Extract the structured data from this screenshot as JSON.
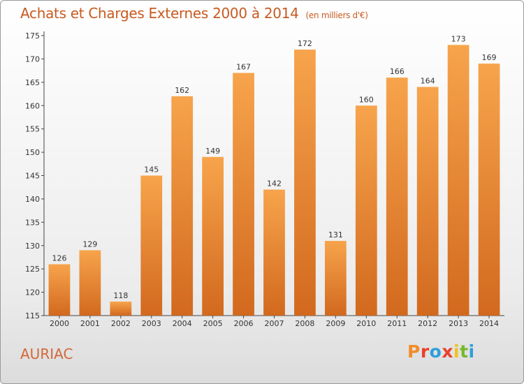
{
  "header": {
    "title": "Achats et Charges Externes 2000 à 2014",
    "subtitle": "(en milliers d'€)"
  },
  "footer": {
    "commune": "AURIAC",
    "logo_text": "Proxiti"
  },
  "colors": {
    "title": "#c85a20",
    "commune": "#d2683a",
    "bar_top": "#f7a44c",
    "bar_bottom": "#d2691e",
    "logo_letters": [
      "#f28c28",
      "#e8412c",
      "#2d9fd9",
      "#e8412c",
      "#f2c21b",
      "#77b82a",
      "#2d9fd9"
    ]
  },
  "chart_data": {
    "type": "bar",
    "title": "Achats et Charges Externes 2000 à 2014",
    "subtitle": "(en milliers d'€)",
    "categories": [
      "2000",
      "2001",
      "2002",
      "2003",
      "2004",
      "2005",
      "2006",
      "2007",
      "2008",
      "2009",
      "2010",
      "2011",
      "2012",
      "2013",
      "2014"
    ],
    "values": [
      126,
      129,
      118,
      145,
      162,
      149,
      167,
      142,
      172,
      131,
      160,
      166,
      164,
      173,
      169
    ],
    "xlabel": "",
    "ylabel": "",
    "ylim": [
      115,
      175
    ],
    "yticks": [
      115,
      120,
      125,
      130,
      135,
      140,
      145,
      150,
      155,
      160,
      165,
      170,
      175
    ],
    "grid": false,
    "data_labels": true
  }
}
